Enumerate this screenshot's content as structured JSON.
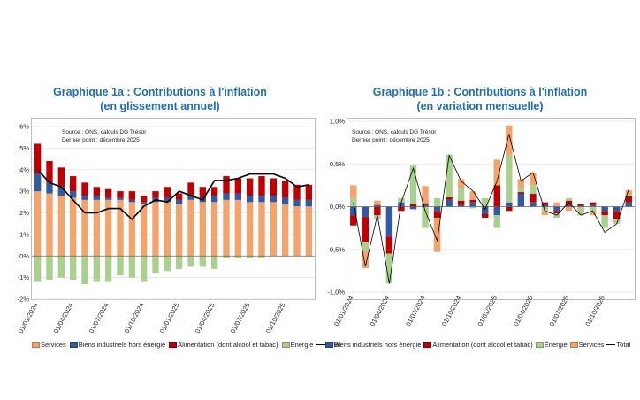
{
  "chart_data": [
    {
      "type": "bar",
      "stacked": true,
      "title_line1": "Graphique 1a : Contributions à l'inflation",
      "title_line2": "(en glissement annuel)",
      "source": "Source : ONS, calculs DG Trésor",
      "last_point": "Dernier point : décembre 2025",
      "ylim": [
        -2,
        6
      ],
      "yticks": [
        "-2%",
        "-1%",
        "0%",
        "1%",
        "2%",
        "3%",
        "4%",
        "5%",
        "6%"
      ],
      "ytick_values": [
        -2,
        -1,
        0,
        1,
        2,
        3,
        4,
        5,
        6
      ],
      "xtick_labels": [
        "01/01/2024",
        "01/04/2024",
        "01/07/2024",
        "01/10/2024",
        "01/01/2025",
        "01/04/2025",
        "01/07/2025",
        "01/10/2025"
      ],
      "xtick_index": [
        0,
        3,
        6,
        9,
        12,
        15,
        18,
        21
      ],
      "n_periods": 24,
      "series": [
        {
          "name": "Services",
          "color": "#f4a46a",
          "values": [
            3.0,
            2.9,
            2.8,
            2.7,
            2.6,
            2.6,
            2.6,
            2.6,
            2.5,
            2.4,
            2.5,
            2.5,
            2.4,
            2.6,
            2.5,
            2.5,
            2.6,
            2.6,
            2.5,
            2.5,
            2.5,
            2.4,
            2.3,
            2.3
          ]
        },
        {
          "name": "Biens industriels hors énergie",
          "color": "#2e5aa6",
          "values": [
            0.8,
            0.5,
            0.4,
            0.3,
            0.2,
            0.2,
            0.1,
            0.1,
            0.1,
            0.1,
            0.2,
            0.2,
            0.2,
            0.2,
            0.2,
            0.3,
            0.3,
            0.3,
            0.3,
            0.3,
            0.3,
            0.3,
            0.3,
            0.3
          ]
        },
        {
          "name": "Alimentation (dont alcool et tabac)",
          "color": "#c00000",
          "values": [
            1.4,
            1.0,
            0.9,
            0.7,
            0.6,
            0.4,
            0.4,
            0.3,
            0.4,
            0.3,
            0.3,
            0.5,
            0.3,
            0.6,
            0.5,
            0.4,
            0.8,
            0.7,
            0.8,
            0.9,
            0.8,
            0.8,
            0.7,
            0.7
          ]
        },
        {
          "name": "Énergie",
          "color": "#a9d18e",
          "values": [
            -1.2,
            -1.1,
            -1.0,
            -1.1,
            -1.3,
            -1.2,
            -1.2,
            -0.9,
            -1.0,
            -1.2,
            -0.8,
            -0.7,
            -0.6,
            -0.5,
            -0.5,
            -0.6,
            -0.1,
            -0.1,
            -0.1,
            -0.1,
            0.0,
            0.0,
            0.0,
            0.0
          ]
        }
      ],
      "total": {
        "name": "Total",
        "color": "#000000",
        "values": [
          4.0,
          3.4,
          3.2,
          2.6,
          2.0,
          2.0,
          2.2,
          2.2,
          1.7,
          2.3,
          2.6,
          2.5,
          3.0,
          2.8,
          2.6,
          3.5,
          3.5,
          3.6,
          3.8,
          3.8,
          3.8,
          3.6,
          3.2,
          3.3
        ]
      }
    },
    {
      "type": "bar",
      "stacked": true,
      "title_line1": "Graphique 1b : Contributions à l'inflation",
      "title_line2": "(en variation mensuelle)",
      "source": "Source : ONS, calculs DG Trésor",
      "last_point": "Dernier point : décembre 2025",
      "ylim": [
        -1.0,
        1.0
      ],
      "yticks": [
        "-1,0%",
        "-0,5%",
        "0,0%",
        "0,5%",
        "1,0%"
      ],
      "ytick_values": [
        -1.0,
        -0.5,
        0.0,
        0.5,
        1.0
      ],
      "xtick_labels": [
        "01/01/2024",
        "01/04/2024",
        "01/07/2024",
        "01/10/2024",
        "01/01/2025",
        "01/04/2025",
        "01/07/2025",
        "01/10/2025"
      ],
      "xtick_index": [
        0,
        3,
        6,
        9,
        12,
        15,
        18,
        21
      ],
      "n_periods": 24,
      "series": [
        {
          "name": "Biens industriels hors énergie",
          "color": "#2e5aa6",
          "values": [
            -0.1,
            -0.12,
            0.02,
            -0.35,
            0.05,
            -0.03,
            0.02,
            -0.05,
            0.08,
            0.02,
            0.05,
            -0.08,
            -0.1,
            0.05,
            0.15,
            0.05,
            0.02,
            -0.05,
            0.02,
            0.01,
            0.02,
            -0.05,
            -0.05,
            0.05
          ]
        },
        {
          "name": "Alimentation (dont alcool et tabac)",
          "color": "#c00000",
          "values": [
            -0.12,
            -0.3,
            -0.1,
            -0.2,
            -0.05,
            0.03,
            0.02,
            -0.08,
            0.03,
            0.05,
            0.03,
            -0.05,
            0.25,
            -0.05,
            0.02,
            0.1,
            0.03,
            -0.03,
            0.05,
            0.02,
            0.03,
            -0.05,
            -0.1,
            0.07
          ]
        },
        {
          "name": "Énergie",
          "color": "#a9d18e",
          "values": [
            0.1,
            -0.1,
            -0.05,
            -0.35,
            0.05,
            0.45,
            -0.25,
            0.1,
            0.5,
            0.15,
            -0.02,
            0.1,
            -0.15,
            0.55,
            0.05,
            0.1,
            -0.05,
            -0.05,
            0.03,
            -0.1,
            -0.05,
            -0.15,
            -0.05,
            0.02
          ]
        },
        {
          "name": "Services",
          "color": "#f4a46a",
          "values": [
            0.15,
            -0.2,
            0.05,
            0.0,
            0.0,
            0.0,
            0.2,
            -0.4,
            0.0,
            0.1,
            0.1,
            0.0,
            0.3,
            0.35,
            0.1,
            0.15,
            -0.05,
            0.05,
            -0.05,
            0.0,
            -0.05,
            0.0,
            0.0,
            0.05
          ]
        }
      ],
      "total": {
        "name": "Total",
        "color": "#000000",
        "values": [
          0.05,
          -0.7,
          -0.1,
          -0.9,
          0.05,
          0.45,
          -0.05,
          -0.4,
          0.6,
          0.3,
          0.18,
          -0.03,
          0.3,
          0.85,
          0.3,
          0.4,
          -0.05,
          -0.1,
          0.05,
          -0.1,
          -0.05,
          -0.3,
          -0.2,
          0.2
        ]
      }
    }
  ]
}
